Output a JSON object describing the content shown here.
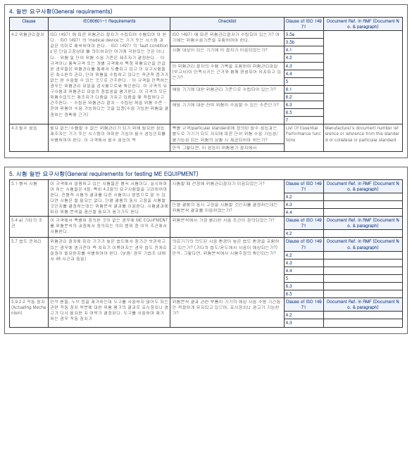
{
  "section4": {
    "title": "4. 일반 요구사항(General requirements)",
    "headers": [
      "Clause",
      "IEC60601-1 Requirements",
      "Checklist",
      "Clause of ISO 14971",
      "Document Ref. in RMF\n(Document No. & paragraph)"
    ],
    "rows": [
      {
        "clause": "4.2 위험관리절차",
        "req": "ISO 14971 에 따른 위험관리 절차가 수립되어 수행되어 야 한다.\n· ISO 14971 의 'medical device'는 기기 또는 시스템 과 같은 의미로 해석하여야 한다.\n· ISO 14971 의 'fault conditions'은 단일고장상태 를 의미하지만 여기에 국한되는 것은 아니다.\n· 위험 및 단어 위험 수용 기준은 제조자가 결정한다.\n· 이 규격이나 통칙규격 또는 개별 규격에서 특정 위험요인을 언급한 경우들은 위험관리를 통해서 도출되고 있고 이 요구사항들은 최소한의 관리, 단어 위험을 수립하고 있다는 객관적 증거가 없는 한 수용할 수 있는 것으로 간주한다.\n· 이 규격을 만족하는 경우는 위험관리 파일을 검사함으로써 확인한다. 이 규격의 요구사항과 위험관리 파일의 정합성을 평가한다. 이 규격의 모든 위험수업도는 제조자가 다음을 가지고 있음을 때 적합하다고 간주한다.\n- 수립된 위험관리 절차\n- 수립된 허용 위험 수준\n- 잔여 위험이 수용 가능하다는 것을 입증(수용 가능한 위험을 결정하는 정책에 근거)",
        "checks": [
          "ISO 14971 에 따른 위험관리절차가 수립되어 있는가? 여기에는 위험수용기준을 포함하여야 한다.",
          "시험 대상이 되는 기기에 이 절차가 이용되었는가?",
          "이 위험관리 절차의 수행 기록을 포함하여 위험관리파일(보고서)이 만족시키는 근거와 함께 완성되어 유지되고 있는가?",
          "해당 기기에 대한 위험관리 기준으로 수립되어 있는가?",
          "해당 기기에 대한 잔여 위험이 수용할 수 있는 수준인가?"
        ],
        "clauseISO": [
          "3.5a",
          "3.5b",
          "4.1",
          "4.2",
          "4.3",
          "4.4",
          "5",
          "6.1",
          "6.2",
          "6.3",
          "6.5",
          "7"
        ],
        "docref": ""
      },
      {
        "clause": "4.3 필수 성능",
        "req": "필요 없는/수행할 수 없는 위험관리가 되기 위해 필요한 성능\n\n제조자는 기기 또는 시스템이 어떠한 기능이 필수 성능인지를 식별하여야 한다. 이 규격에서 필수 성능이 목",
        "checks": [
          "특별 규격(particular standard)에 정의된 필수 성능과는 별도로 기기가 되도 차지애 따른 단어 위험 수용 가능성/불가능성 되는 위험의 상황 시 제공되어야 하는가?",
          "만약 그렇다면, 이 성능이 위험평가 절차에서"
        ],
        "clauseISO": [
          "List Of Essential Performance functions"
        ],
        "docref": "Manufacturer's document number reference or reference from this standard or collateral or particular standard"
      }
    ]
  },
  "section5": {
    "title": "5. 시험 일반 요구사항(General requirements for testing ME EQUIPMENT)",
    "groups": [
      {
        "clause": "5.1 형식 시험",
        "req": "이 규격에서 설명하고 있는 시험들은 형식 시험이다. 실시하여야 하는 시험들은 4절, 특히 4.2절의 요구사항들을 고려하여야 한다.\n전형적 시험의 결과를 다른 시험이나 방법으로 알 수 있다면 시험은 할 필요는 없다.\n단열 결함의 동시 고장을 시험할 것인지를 결정하는데는 위험분석 결과를 이용한다.\n시험결과에 따라 위험 분석을 갱신할 필요가 생기기도 한다.",
        "checks": [
          "시험할 때 선정에 위험관리절차가 이용되었는가?",
          "단열 결함의 동시 고장을 시험할 것인지를 결정하는데는 위험분석 결과를 이용하였는가?"
        ],
        "clauseISO": [
          "Clause of ISO 14971",
          "4.2",
          "4.3",
          "4.4"
        ],
        "docref_head": "Document Ref. in RMF\n(Document No. & paragraph)"
      },
      {
        "clause": "5.4 a) 기타의 조건",
        "req": "이 규격에서 특별히 정의한 것이 없는 경우에 ME EQUIPMENT 를 위험분석의 과정에서 정의되는 의미 범위 중 이익 조건에서 시험한다.",
        "checks": [
          "위험분석에서 가장 불리한 사용 조건이 정의되었는가?"
        ],
        "clauseISO": [
          "Clause of ISO 14971",
          "4.2"
        ],
        "docref_head": "Document Ref. in RMF\n(Document No. & paragraph)"
      },
      {
        "clause": "5.7 습도 전처리",
        "req": "위험관리 절차에 따라 기기가 높은 습도에서 장기간 보관하고 있는 경우에 영규전이 즉 차지기 이류어지는 경우 습도 전처리 설정이 필요한지를 식별하여야 한다.\n(낮음: 경우 기습조 내에서 48 시간과 동일)",
        "checks": [
          "의료기기의 의도된 사용 환경이 높은 습도 환경을 포함하고 있는가? (기타의 습도/온도에서 사용이 예상되는가?)\n만약, 그렇다면, 위험분석에서 시험주장의 확인되는가?"
        ],
        "clauseISO": [
          "Clause of ISO 14971",
          "4.2",
          "4.3",
          "4.4",
          "5",
          "6.3",
          "6.5"
        ],
        "docref_head": "Document Ref. in RMF\n(Document No. & paragraph)"
      },
      {
        "clause": "5.9.2.2 작동 장치(Actuating Mechanism)",
        "req": "만약 핸들, 노브 등을 제거하는데 도구를 사용하지 않아도 되는 관련 작동 장치 부분에 대한 위험 평가의 결과로 표시장치나 경고가 다시 필요한 지 여부가 결정된다. 도구를 사용하여 제거 하는 경우 작동 장치가",
        "checks": [
          "위험분석 결과 관련 부품이 기기의 예상 사용 수명 기간동안 적절하게 유지되고 있으며, 표시장치나 경고가 기능한가?"
        ],
        "clauseISO": [
          "Clause of ISO 14971",
          "4.2",
          "4.3"
        ],
        "docref_head": "Document Ref. in RMF\n(Document No. & paragraph)"
      }
    ]
  }
}
